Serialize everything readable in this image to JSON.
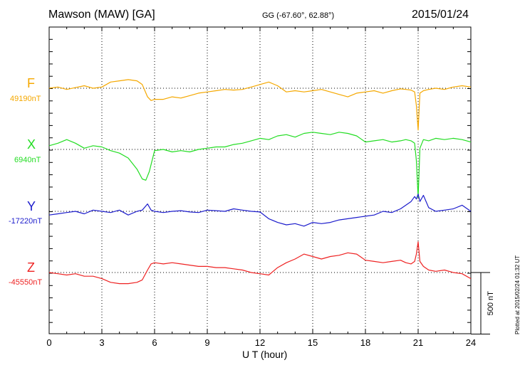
{
  "header": {
    "station": "Mawson (MAW)  [GA]",
    "coords": "GG (-67.60°,  62.88°)",
    "date": "2015/01/24"
  },
  "footer": {
    "plotted": "Plotted at 2015/02/24 01:32 UT"
  },
  "chart_data": {
    "type": "line",
    "xlabel": "U T (hour)",
    "xlim": [
      0,
      24
    ],
    "xticks": [
      "0",
      "3",
      "6",
      "9",
      "12",
      "15",
      "18",
      "21",
      "24"
    ],
    "scale_bar": "500 nT",
    "grid": true,
    "series": [
      {
        "name": "F",
        "baseline_label": "49190nT",
        "baseline": 49190,
        "color": "#f5a800",
        "x": [
          0,
          0.5,
          1,
          1.5,
          2,
          2.5,
          3,
          3.5,
          4,
          4.5,
          5,
          5.3,
          5.6,
          5.8,
          6,
          6.5,
          7,
          7.5,
          8,
          8.5,
          9,
          9.5,
          10,
          10.5,
          11,
          11.5,
          12,
          12.5,
          13,
          13.5,
          14,
          14.5,
          15,
          15.5,
          16,
          16.5,
          17,
          17.5,
          18,
          18.5,
          19,
          19.5,
          20,
          20.3,
          20.6,
          20.8,
          20.9,
          21,
          21.1,
          21.3,
          21.6,
          22,
          22.5,
          23,
          23.5,
          24
        ],
        "y": [
          49190,
          49200,
          49180,
          49195,
          49210,
          49190,
          49200,
          49240,
          49250,
          49260,
          49250,
          49220,
          49120,
          49090,
          49100,
          49100,
          49120,
          49110,
          49130,
          49150,
          49160,
          49170,
          49180,
          49175,
          49180,
          49200,
          49220,
          49240,
          49210,
          49160,
          49170,
          49160,
          49170,
          49180,
          49160,
          49140,
          49120,
          49150,
          49160,
          49170,
          49150,
          49170,
          49185,
          49180,
          49175,
          49160,
          49050,
          48850,
          49150,
          49170,
          49180,
          49190,
          49180,
          49200,
          49210,
          49200
        ]
      },
      {
        "name": "X",
        "baseline_label": "6940nT",
        "baseline": 6940,
        "color": "#22dd22",
        "x": [
          0,
          0.5,
          1,
          1.5,
          2,
          2.5,
          3,
          3.5,
          4,
          4.5,
          5,
          5.3,
          5.5,
          5.7,
          6,
          6.5,
          7,
          7.5,
          8,
          8.5,
          9,
          9.5,
          10,
          10.5,
          11,
          11.5,
          12,
          12.5,
          13,
          13.5,
          14,
          14.5,
          15,
          15.5,
          16,
          16.5,
          17,
          17.5,
          18,
          18.5,
          19,
          19.5,
          20,
          20.3,
          20.6,
          20.8,
          20.9,
          21,
          21.1,
          21.3,
          21.6,
          22,
          22.5,
          23,
          23.5,
          24
        ],
        "y": [
          6970,
          6990,
          7020,
          6990,
          6950,
          6970,
          6960,
          6930,
          6910,
          6870,
          6780,
          6700,
          6690,
          6760,
          6930,
          6940,
          6920,
          6930,
          6920,
          6940,
          6950,
          6960,
          6960,
          6980,
          6990,
          7010,
          7030,
          7020,
          7050,
          7060,
          7040,
          7070,
          7080,
          7070,
          7060,
          7080,
          7070,
          7050,
          7000,
          7010,
          7020,
          7000,
          7010,
          7020,
          7010,
          6990,
          6850,
          6550,
          6950,
          7020,
          7010,
          7030,
          7020,
          7030,
          7020,
          7000
        ]
      },
      {
        "name": "Y",
        "baseline_label": "-17220nT",
        "baseline": -17220,
        "color": "#1c1ccc",
        "x": [
          0,
          0.5,
          1,
          1.5,
          2,
          2.5,
          3,
          3.5,
          4,
          4.5,
          5,
          5.3,
          5.6,
          5.8,
          6,
          6.5,
          7,
          7.5,
          8,
          8.5,
          9,
          9.5,
          10,
          10.5,
          11,
          11.5,
          12,
          12.5,
          13,
          13.5,
          14,
          14.5,
          15,
          15.5,
          16,
          16.5,
          17,
          17.5,
          18,
          18.5,
          19,
          19.5,
          20,
          20.3,
          20.6,
          20.8,
          20.9,
          21,
          21.1,
          21.3,
          21.6,
          22,
          22.5,
          23,
          23.5,
          24
        ],
        "y": [
          -17250,
          -17240,
          -17230,
          -17220,
          -17240,
          -17210,
          -17220,
          -17230,
          -17210,
          -17250,
          -17220,
          -17210,
          -17160,
          -17210,
          -17220,
          -17230,
          -17220,
          -17215,
          -17225,
          -17230,
          -17210,
          -17215,
          -17220,
          -17200,
          -17210,
          -17220,
          -17225,
          -17280,
          -17310,
          -17330,
          -17320,
          -17340,
          -17310,
          -17320,
          -17310,
          -17290,
          -17280,
          -17270,
          -17260,
          -17250,
          -17220,
          -17230,
          -17200,
          -17170,
          -17140,
          -17100,
          -17120,
          -17080,
          -17140,
          -17090,
          -17190,
          -17220,
          -17210,
          -17200,
          -17170,
          -17220
        ]
      },
      {
        "name": "Z",
        "baseline_label": "-45550nT",
        "baseline": -45550,
        "color": "#ee2222",
        "x": [
          0,
          0.5,
          1,
          1.5,
          2,
          2.5,
          3,
          3.5,
          4,
          4.5,
          5,
          5.3,
          5.6,
          5.8,
          6,
          6.5,
          7,
          7.5,
          8,
          8.5,
          9,
          9.5,
          10,
          10.5,
          11,
          11.5,
          12,
          12.5,
          13,
          13.5,
          14,
          14.5,
          15,
          15.5,
          16,
          16.5,
          17,
          17.5,
          18,
          18.5,
          19,
          19.5,
          20,
          20.3,
          20.6,
          20.8,
          20.9,
          21,
          21.1,
          21.3,
          21.6,
          22,
          22.5,
          23,
          23.5,
          24
        ],
        "y": [
          -45550,
          -45560,
          -45570,
          -45560,
          -45580,
          -45580,
          -45600,
          -45630,
          -45640,
          -45640,
          -45630,
          -45610,
          -45530,
          -45480,
          -45470,
          -45480,
          -45470,
          -45480,
          -45490,
          -45500,
          -45500,
          -45510,
          -45510,
          -45520,
          -45530,
          -45550,
          -45560,
          -45570,
          -45510,
          -45470,
          -45440,
          -45400,
          -45420,
          -45440,
          -45420,
          -45410,
          -45390,
          -45400,
          -45450,
          -45460,
          -45470,
          -45460,
          -45450,
          -45470,
          -45480,
          -45460,
          -45400,
          -45300,
          -45460,
          -45500,
          -45530,
          -45540,
          -45530,
          -45550,
          -45560,
          -45600
        ]
      }
    ]
  }
}
